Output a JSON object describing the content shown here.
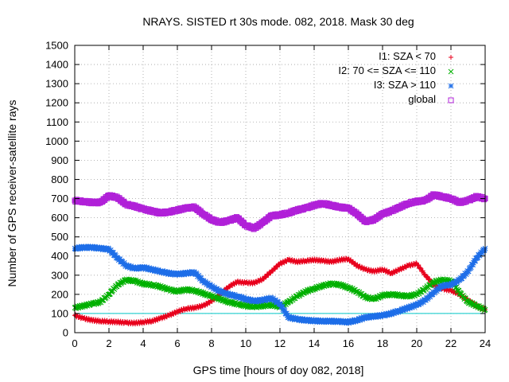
{
  "chart_data": {
    "type": "scatter",
    "title": "NRAYS. SISTED rt 30s mode. 082, 2018. Mask 30 deg",
    "xlabel": "GPS time [hours of doy 082, 2018]",
    "ylabel": "Number of GPS receiver-satellite rays",
    "xlim": [
      0,
      24
    ],
    "ylim": [
      0,
      1500
    ],
    "xticks": [
      "0",
      "2",
      "4",
      "6",
      "8",
      "10",
      "12",
      "14",
      "16",
      "18",
      "20",
      "22",
      "24"
    ],
    "yticks": [
      "0",
      "100",
      "200",
      "300",
      "400",
      "500",
      "600",
      "700",
      "800",
      "900",
      "1000",
      "1100",
      "1200",
      "1300",
      "1400",
      "1500"
    ],
    "grid": true,
    "legend_position": "top-right",
    "reference_line": {
      "y": 100,
      "color": "#00c8c8"
    },
    "series": [
      {
        "name": "I1: SZA < 70",
        "marker": "+",
        "color": "#e8001c",
        "x": [
          0,
          0.5,
          1,
          1.5,
          2,
          2.5,
          3,
          3.5,
          4,
          4.5,
          5,
          5.5,
          6,
          6.5,
          7,
          7.5,
          8,
          8.5,
          9,
          9.5,
          10,
          10.5,
          11,
          11.5,
          12,
          12.5,
          13,
          13.5,
          14,
          14.5,
          15,
          15.5,
          16,
          16.5,
          17,
          17.5,
          18,
          18.5,
          19,
          19.5,
          20,
          20.5,
          21,
          21.5,
          22,
          22.5,
          23,
          23.5,
          24
        ],
        "y": [
          90,
          75,
          65,
          60,
          58,
          55,
          52,
          50,
          55,
          60,
          75,
          90,
          110,
          125,
          130,
          140,
          165,
          200,
          240,
          265,
          260,
          260,
          280,
          320,
          360,
          380,
          370,
          375,
          380,
          375,
          370,
          380,
          385,
          350,
          330,
          320,
          330,
          310,
          330,
          350,
          360,
          300,
          250,
          230,
          220,
          200,
          170,
          140,
          120
        ]
      },
      {
        "name": "I2: 70 <= SZA <= 110",
        "marker": "x",
        "color": "#00b000",
        "x": [
          0,
          0.5,
          1,
          1.5,
          2,
          2.5,
          3,
          3.5,
          4,
          4.5,
          5,
          5.5,
          6,
          6.5,
          7,
          7.5,
          8,
          8.5,
          9,
          9.5,
          10,
          10.5,
          11,
          11.5,
          12,
          12.5,
          13,
          13.5,
          14,
          14.5,
          15,
          15.5,
          16,
          16.5,
          17,
          17.5,
          18,
          18.5,
          19,
          19.5,
          20,
          20.5,
          21,
          21.5,
          22,
          22.5,
          23,
          23.5,
          24
        ],
        "y": [
          130,
          140,
          150,
          160,
          200,
          250,
          275,
          270,
          255,
          250,
          240,
          225,
          215,
          225,
          220,
          205,
          190,
          175,
          160,
          150,
          140,
          135,
          140,
          145,
          135,
          160,
          190,
          215,
          230,
          245,
          255,
          250,
          235,
          215,
          185,
          175,
          195,
          200,
          195,
          190,
          200,
          230,
          265,
          275,
          270,
          210,
          160,
          140,
          120
        ]
      },
      {
        "name": "I3: SZA > 110",
        "marker": "*",
        "color": "#1e6ee8",
        "x": [
          0,
          0.5,
          1,
          1.5,
          2,
          2.5,
          3,
          3.5,
          4,
          4.5,
          5,
          5.5,
          6,
          6.5,
          7,
          7.5,
          8,
          8.5,
          9,
          9.5,
          10,
          10.5,
          11,
          11.5,
          12,
          12.5,
          13,
          13.5,
          14,
          14.5,
          15,
          15.5,
          16,
          16.5,
          17,
          17.5,
          18,
          18.5,
          19,
          19.5,
          20,
          20.5,
          21,
          21.5,
          22,
          22.5,
          23,
          23.5,
          24
        ],
        "y": [
          440,
          445,
          445,
          440,
          435,
          390,
          350,
          335,
          340,
          330,
          320,
          310,
          305,
          310,
          315,
          270,
          240,
          215,
          200,
          190,
          175,
          165,
          170,
          180,
          150,
          80,
          70,
          65,
          62,
          60,
          60,
          58,
          55,
          65,
          80,
          85,
          90,
          100,
          115,
          130,
          145,
          170,
          210,
          245,
          250,
          275,
          320,
          390,
          440
        ]
      },
      {
        "name": "global",
        "marker": "square",
        "color": "#b020d8",
        "x": [
          0,
          0.5,
          1,
          1.5,
          2,
          2.5,
          3,
          3.5,
          4,
          4.5,
          5,
          5.5,
          6,
          6.5,
          7,
          7.5,
          8,
          8.5,
          9,
          9.5,
          10,
          10.5,
          11,
          11.5,
          12,
          12.5,
          13,
          13.5,
          14,
          14.5,
          15,
          15.5,
          16,
          16.5,
          17,
          17.5,
          18,
          18.5,
          19,
          19.5,
          20,
          20.5,
          21,
          21.5,
          22,
          22.5,
          23,
          23.5,
          24
        ],
        "y": [
          690,
          685,
          680,
          680,
          715,
          705,
          670,
          660,
          645,
          635,
          625,
          630,
          640,
          650,
          655,
          620,
          590,
          575,
          585,
          600,
          560,
          545,
          575,
          610,
          615,
          625,
          640,
          650,
          665,
          675,
          665,
          655,
          650,
          620,
          580,
          590,
          620,
          635,
          655,
          675,
          685,
          690,
          720,
          710,
          700,
          680,
          690,
          710,
          700
        ]
      }
    ]
  }
}
